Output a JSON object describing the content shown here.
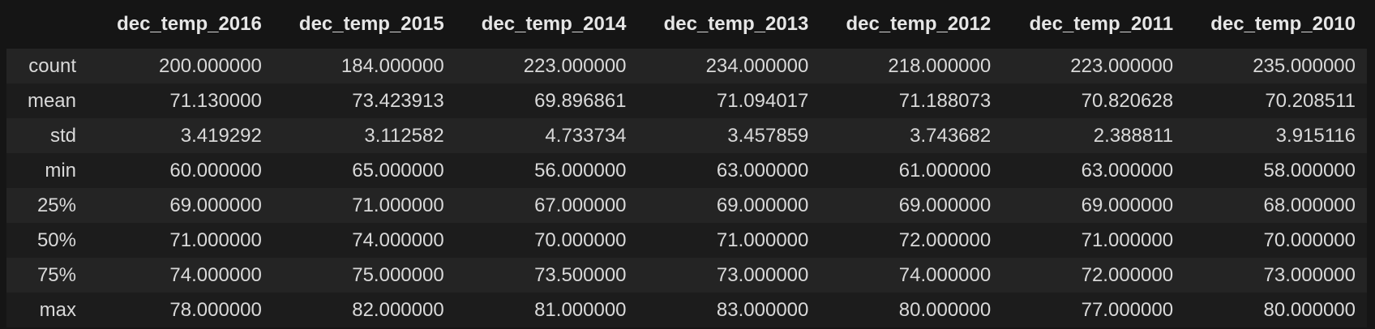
{
  "table": {
    "index_header": "",
    "columns": [
      "dec_temp_2016",
      "dec_temp_2015",
      "dec_temp_2014",
      "dec_temp_2013",
      "dec_temp_2012",
      "dec_temp_2011",
      "dec_temp_2010"
    ],
    "rows": [
      {
        "label": "count",
        "values": [
          "200.000000",
          "184.000000",
          "223.000000",
          "234.000000",
          "218.000000",
          "223.000000",
          "235.000000"
        ]
      },
      {
        "label": "mean",
        "values": [
          "71.130000",
          "73.423913",
          "69.896861",
          "71.094017",
          "71.188073",
          "70.820628",
          "70.208511"
        ]
      },
      {
        "label": "std",
        "values": [
          "3.419292",
          "3.112582",
          "4.733734",
          "3.457859",
          "3.743682",
          "2.388811",
          "3.915116"
        ]
      },
      {
        "label": "min",
        "values": [
          "60.000000",
          "65.000000",
          "56.000000",
          "63.000000",
          "61.000000",
          "63.000000",
          "58.000000"
        ]
      },
      {
        "label": "25%",
        "values": [
          "69.000000",
          "71.000000",
          "67.000000",
          "69.000000",
          "69.000000",
          "69.000000",
          "68.000000"
        ]
      },
      {
        "label": "50%",
        "values": [
          "71.000000",
          "74.000000",
          "70.000000",
          "71.000000",
          "72.000000",
          "71.000000",
          "70.000000"
        ]
      },
      {
        "label": "75%",
        "values": [
          "74.000000",
          "75.000000",
          "73.500000",
          "73.000000",
          "74.000000",
          "72.000000",
          "73.000000"
        ]
      },
      {
        "label": "max",
        "values": [
          "78.000000",
          "82.000000",
          "81.000000",
          "83.000000",
          "80.000000",
          "77.000000",
          "80.000000"
        ]
      }
    ]
  }
}
